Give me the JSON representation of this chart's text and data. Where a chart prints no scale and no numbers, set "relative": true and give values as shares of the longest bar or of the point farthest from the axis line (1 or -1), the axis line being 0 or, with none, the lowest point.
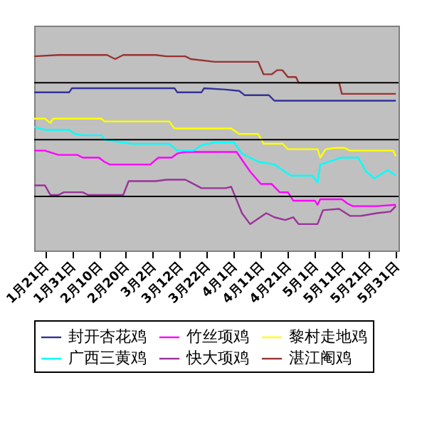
{
  "chart_data": {
    "type": "line",
    "relative": true,
    "legend": "bottom",
    "ref_lines": [
      {
        "axis": "y",
        "value": 0.858,
        "color": "#000000"
      },
      {
        "axis": "y",
        "value": 0.567,
        "color": "#000000"
      },
      {
        "axis": "y",
        "value": 0.277,
        "color": "#000000"
      }
    ],
    "xlim": [
      "--01-17",
      "--06-01"
    ],
    "xticks": [
      {
        "value": "--01-21",
        "label": "1月21日"
      },
      {
        "value": "--01-31",
        "label": "1月31日"
      },
      {
        "value": "--02-10",
        "label": "2月10日"
      },
      {
        "value": "--02-20",
        "label": "2月20日"
      },
      {
        "value": "--03-02",
        "label": "3月2日"
      },
      {
        "value": "--03-12",
        "label": "3月12日"
      },
      {
        "value": "--03-22",
        "label": "3月22日"
      },
      {
        "value": "--04-01",
        "label": "4月1日"
      },
      {
        "value": "--04-11",
        "label": "4月11日"
      },
      {
        "value": "--04-21",
        "label": "4月21日"
      },
      {
        "value": "--05-01",
        "label": "5月1日"
      },
      {
        "value": "--05-11",
        "label": "5月11日"
      },
      {
        "value": "--05-21",
        "label": "5月21日"
      },
      {
        "value": "--05-31",
        "label": "5月31日"
      }
    ],
    "series": [
      {
        "name": "封开杏花鸡",
        "color": "#333399",
        "x": [
          "--01-17",
          "--01-30",
          "--01-31",
          "--03-10",
          "--03-11",
          "--03-20",
          "--03-21",
          "--03-29",
          "--04-03",
          "--04-05",
          "--04-14",
          "--04-16",
          "--05-31"
        ],
        "values": [
          0.809,
          0.809,
          0.83,
          0.83,
          0.809,
          0.809,
          0.83,
          0.823,
          0.816,
          0.794,
          0.794,
          0.766,
          0.766
        ]
      },
      {
        "name": "竹丝项鸡",
        "color": "#ff00ff",
        "x": [
          "--01-17",
          "--01-21",
          "--01-26",
          "--02-02",
          "--02-04",
          "--02-10",
          "--02-12",
          "--02-14",
          "--03-01",
          "--03-04",
          "--03-09",
          "--03-11",
          "--03-14",
          "--04-02",
          "--04-07",
          "--04-11",
          "--04-15",
          "--04-18",
          "--04-21",
          "--04-23",
          "--05-01",
          "--05-02",
          "--05-03",
          "--05-11",
          "--05-13",
          "--05-15",
          "--05-24",
          "--05-31"
        ],
        "values": [
          0.511,
          0.511,
          0.489,
          0.489,
          0.475,
          0.475,
          0.454,
          0.44,
          0.44,
          0.475,
          0.475,
          0.496,
          0.504,
          0.504,
          0.404,
          0.34,
          0.34,
          0.298,
          0.298,
          0.255,
          0.255,
          0.234,
          0.262,
          0.262,
          0.241,
          0.227,
          0.227,
          0.234
        ]
      },
      {
        "name": "黎村走地鸡",
        "color": "#ffff00",
        "x": [
          "--01-17",
          "--01-21",
          "--01-23",
          "--01-24",
          "--02-11",
          "--02-12",
          "--03-08",
          "--03-10",
          "--03-31",
          "--04-03",
          "--04-10",
          "--04-12",
          "--04-19",
          "--04-21",
          "--05-02",
          "--05-03",
          "--05-05",
          "--05-09",
          "--05-12",
          "--05-14",
          "--05-30",
          "--05-31"
        ],
        "values": [
          0.674,
          0.674,
          0.652,
          0.674,
          0.674,
          0.66,
          0.66,
          0.624,
          0.624,
          0.596,
          0.596,
          0.546,
          0.546,
          0.518,
          0.518,
          0.475,
          0.518,
          0.525,
          0.525,
          0.511,
          0.511,
          0.482
        ]
      },
      {
        "name": "广西三黄鸡",
        "color": "#00ffff",
        "x": [
          "--01-17",
          "--01-21",
          "--01-30",
          "--02-01",
          "--02-04",
          "--02-11",
          "--02-12",
          "--02-22",
          "--03-08",
          "--03-11",
          "--03-17",
          "--03-20",
          "--03-25",
          "--04-01",
          "--04-04",
          "--04-10",
          "--04-16",
          "--04-22",
          "--04-30",
          "--05-02",
          "--05-03",
          "--05-11",
          "--05-17",
          "--05-20",
          "--05-23",
          "--05-28",
          "--05-31"
        ],
        "values": [
          0.631,
          0.617,
          0.617,
          0.596,
          0.589,
          0.589,
          0.567,
          0.546,
          0.546,
          0.511,
          0.511,
          0.539,
          0.553,
          0.553,
          0.496,
          0.454,
          0.44,
          0.383,
          0.383,
          0.348,
          0.44,
          0.475,
          0.475,
          0.404,
          0.369,
          0.411,
          0.383
        ]
      },
      {
        "name": "快大项鸡",
        "color": "#993399",
        "x": [
          "--01-17",
          "--01-21",
          "--01-23",
          "--01-26",
          "--01-28",
          "--02-04",
          "--02-06",
          "--02-19",
          "--02-21",
          "--03-03",
          "--03-07",
          "--03-14",
          "--03-16",
          "--03-20",
          "--03-29",
          "--03-31",
          "--04-04",
          "--04-07",
          "--04-13",
          "--04-16",
          "--04-20",
          "--04-23",
          "--04-25",
          "--05-02",
          "--05-04",
          "--05-10",
          "--05-14",
          "--05-18",
          "--05-24",
          "--05-29",
          "--05-31"
        ],
        "values": [
          0.333,
          0.333,
          0.284,
          0.284,
          0.298,
          0.298,
          0.284,
          0.284,
          0.355,
          0.355,
          0.362,
          0.362,
          0.348,
          0.319,
          0.319,
          0.326,
          0.191,
          0.135,
          0.191,
          0.17,
          0.156,
          0.17,
          0.135,
          0.135,
          0.206,
          0.213,
          0.177,
          0.177,
          0.191,
          0.199,
          0.227
        ]
      },
      {
        "name": "湛江阉鸡",
        "color": "#993333",
        "x": [
          "--01-17",
          "--01-26",
          "--02-13",
          "--02-16",
          "--02-19",
          "--03-03",
          "--03-07",
          "--03-14",
          "--03-16",
          "--03-25",
          "--04-10",
          "--04-12",
          "--04-15",
          "--04-17",
          "--04-19",
          "--04-21",
          "--04-24",
          "--04-25",
          "--05-10",
          "--05-11",
          "--05-31"
        ],
        "values": [
          0.993,
          1,
          1,
          0.979,
          1,
          1,
          0.993,
          0.993,
          0.979,
          0.965,
          0.965,
          0.901,
          0.901,
          0.922,
          0.922,
          0.887,
          0.887,
          0.858,
          0.858,
          0.801,
          0.801
        ]
      }
    ]
  }
}
